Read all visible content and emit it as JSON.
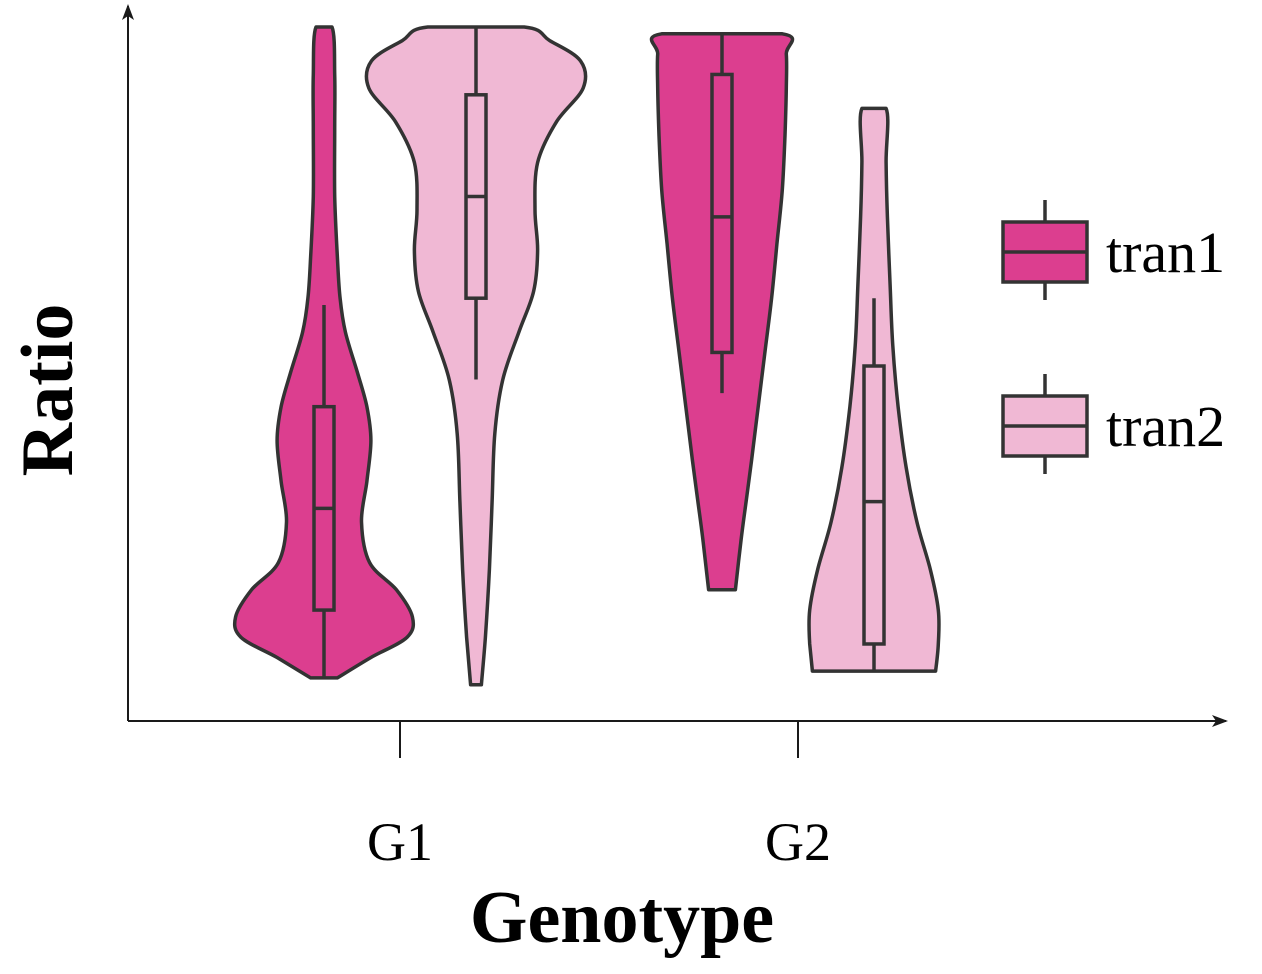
{
  "chart_data": {
    "type": "violin",
    "title": "",
    "xlabel": "Genotype",
    "ylabel": "Ratio",
    "categories": [
      "G1",
      "G2"
    ],
    "ylim": [
      0,
      1
    ],
    "y_ticks_shown": false,
    "legend_position": "right",
    "series": [
      {
        "name": "tran1",
        "color": "#dc3e8f",
        "groups": [
          {
            "category": "G1",
            "min": 0.04,
            "max": 1.0,
            "q1": 0.14,
            "median": 0.29,
            "q3": 0.44,
            "whisker_low": 0.04,
            "whisker_high": 0.59,
            "density": [
              [
                0.04,
                0.1
              ],
              [
                0.07,
                0.35
              ],
              [
                0.1,
                0.62
              ],
              [
                0.13,
                0.66
              ],
              [
                0.17,
                0.54
              ],
              [
                0.21,
                0.34
              ],
              [
                0.27,
                0.28
              ],
              [
                0.33,
                0.32
              ],
              [
                0.39,
                0.35
              ],
              [
                0.44,
                0.32
              ],
              [
                0.49,
                0.25
              ],
              [
                0.55,
                0.16
              ],
              [
                0.6,
                0.12
              ],
              [
                0.66,
                0.1
              ],
              [
                0.75,
                0.08
              ],
              [
                0.85,
                0.08
              ],
              [
                0.93,
                0.08
              ],
              [
                1.0,
                0.06
              ]
            ]
          },
          {
            "category": "G2",
            "min": 0.17,
            "max": 0.99,
            "q1": 0.52,
            "median": 0.72,
            "q3": 0.93,
            "whisker_low": 0.46,
            "whisker_high": 0.99,
            "density": [
              [
                0.17,
                0.1
              ],
              [
                0.24,
                0.14
              ],
              [
                0.3,
                0.18
              ],
              [
                0.36,
                0.22
              ],
              [
                0.44,
                0.27
              ],
              [
                0.52,
                0.32
              ],
              [
                0.6,
                0.37
              ],
              [
                0.68,
                0.41
              ],
              [
                0.76,
                0.45
              ],
              [
                0.84,
                0.47
              ],
              [
                0.91,
                0.48
              ],
              [
                0.96,
                0.48
              ],
              [
                0.99,
                0.45
              ]
            ]
          }
        ]
      },
      {
        "name": "tran2",
        "color": "#f0b8d4",
        "groups": [
          {
            "category": "G1",
            "min": 0.03,
            "max": 1.0,
            "q1": 0.6,
            "median": 0.75,
            "q3": 0.9,
            "whisker_low": 0.48,
            "whisker_high": 1.0,
            "density": [
              [
                0.03,
                0.04
              ],
              [
                0.1,
                0.07
              ],
              [
                0.2,
                0.1
              ],
              [
                0.3,
                0.12
              ],
              [
                0.4,
                0.14
              ],
              [
                0.48,
                0.2
              ],
              [
                0.55,
                0.32
              ],
              [
                0.61,
                0.43
              ],
              [
                0.67,
                0.46
              ],
              [
                0.73,
                0.44
              ],
              [
                0.8,
                0.46
              ],
              [
                0.86,
                0.6
              ],
              [
                0.91,
                0.8
              ],
              [
                0.95,
                0.78
              ],
              [
                0.98,
                0.55
              ],
              [
                1.0,
                0.36
              ]
            ]
          },
          {
            "category": "G2",
            "min": 0.05,
            "max": 0.88,
            "q1": 0.09,
            "median": 0.3,
            "q3": 0.5,
            "whisker_low": 0.05,
            "whisker_high": 0.6,
            "density": [
              [
                0.05,
                0.46
              ],
              [
                0.09,
                0.48
              ],
              [
                0.14,
                0.48
              ],
              [
                0.2,
                0.42
              ],
              [
                0.27,
                0.32
              ],
              [
                0.35,
                0.24
              ],
              [
                0.44,
                0.18
              ],
              [
                0.53,
                0.14
              ],
              [
                0.62,
                0.12
              ],
              [
                0.72,
                0.1
              ],
              [
                0.8,
                0.09
              ],
              [
                0.88,
                0.09
              ]
            ]
          }
        ]
      }
    ]
  }
}
